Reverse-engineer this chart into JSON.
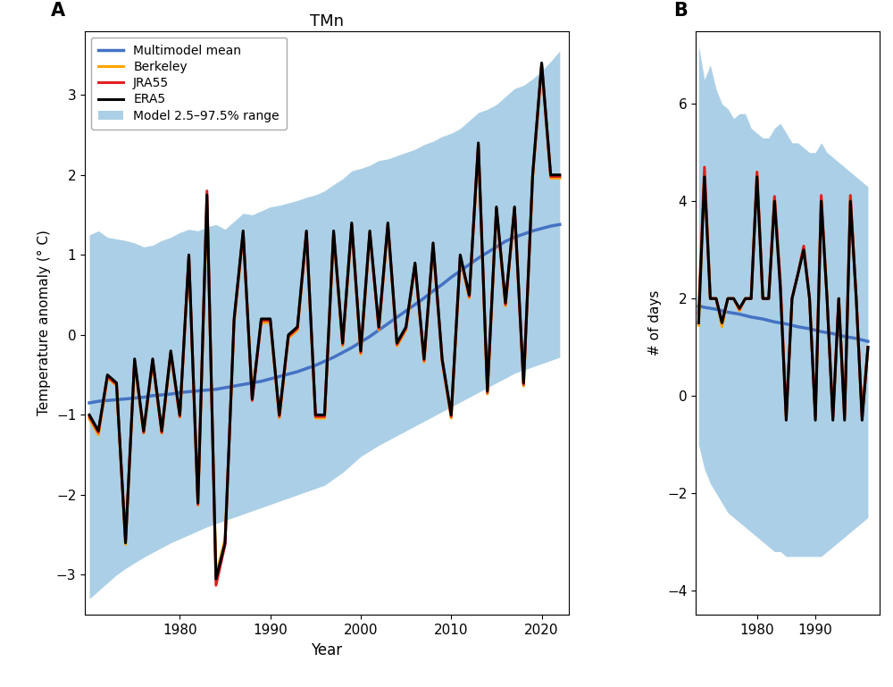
{
  "title_A": "TMn",
  "label_A": "A",
  "label_B": "B",
  "ylabel_A": "Temperature anomaly (° C)",
  "ylabel_B": "# of days",
  "xlabel": "Year",
  "legend_labels": [
    "Multimodel mean",
    "Berkeley",
    "JRA55",
    "ERA5",
    "Model 2.5–97.5% range"
  ],
  "shade_color": "#7EB6D9",
  "shade_alpha": 0.65,
  "blue_color": "#4472C4",
  "orange_color": "#FFA500",
  "red_color": "#E02020",
  "black_color": "#000000",
  "years_A": [
    1970,
    1971,
    1972,
    1973,
    1974,
    1975,
    1976,
    1977,
    1978,
    1979,
    1980,
    1981,
    1982,
    1983,
    1984,
    1985,
    1986,
    1987,
    1988,
    1989,
    1990,
    1991,
    1992,
    1993,
    1994,
    1995,
    1996,
    1997,
    1998,
    1999,
    2000,
    2001,
    2002,
    2003,
    2004,
    2005,
    2006,
    2007,
    2008,
    2009,
    2010,
    2011,
    2012,
    2013,
    2014,
    2015,
    2016,
    2017,
    2018,
    2019,
    2020,
    2021,
    2022
  ],
  "multimodel_A": [
    -0.85,
    -0.83,
    -0.82,
    -0.81,
    -0.8,
    -0.79,
    -0.78,
    -0.76,
    -0.75,
    -0.74,
    -0.72,
    -0.71,
    -0.7,
    -0.69,
    -0.68,
    -0.66,
    -0.64,
    -0.62,
    -0.6,
    -0.58,
    -0.55,
    -0.52,
    -0.49,
    -0.46,
    -0.42,
    -0.38,
    -0.33,
    -0.28,
    -0.22,
    -0.16,
    -0.09,
    -0.02,
    0.06,
    0.14,
    0.22,
    0.3,
    0.38,
    0.46,
    0.55,
    0.63,
    0.72,
    0.8,
    0.88,
    0.96,
    1.03,
    1.1,
    1.17,
    1.22,
    1.26,
    1.3,
    1.33,
    1.36,
    1.38
  ],
  "shade_upper_A": [
    1.25,
    1.3,
    1.22,
    1.2,
    1.18,
    1.15,
    1.1,
    1.12,
    1.18,
    1.22,
    1.28,
    1.32,
    1.3,
    1.35,
    1.38,
    1.32,
    1.42,
    1.52,
    1.5,
    1.55,
    1.6,
    1.62,
    1.65,
    1.68,
    1.72,
    1.75,
    1.8,
    1.88,
    1.95,
    2.05,
    2.08,
    2.12,
    2.18,
    2.2,
    2.24,
    2.28,
    2.32,
    2.38,
    2.42,
    2.48,
    2.52,
    2.58,
    2.68,
    2.78,
    2.82,
    2.88,
    2.98,
    3.08,
    3.12,
    3.2,
    3.3,
    3.42,
    3.55
  ],
  "shade_lower_A": [
    -3.3,
    -3.2,
    -3.1,
    -3.0,
    -2.92,
    -2.85,
    -2.78,
    -2.72,
    -2.66,
    -2.6,
    -2.55,
    -2.5,
    -2.45,
    -2.4,
    -2.36,
    -2.32,
    -2.28,
    -2.24,
    -2.2,
    -2.16,
    -2.12,
    -2.08,
    -2.04,
    -2.0,
    -1.96,
    -1.92,
    -1.88,
    -1.8,
    -1.72,
    -1.62,
    -1.52,
    -1.45,
    -1.38,
    -1.32,
    -1.26,
    -1.2,
    -1.14,
    -1.08,
    -1.02,
    -0.96,
    -0.9,
    -0.84,
    -0.78,
    -0.72,
    -0.66,
    -0.6,
    -0.54,
    -0.48,
    -0.44,
    -0.4,
    -0.36,
    -0.32,
    -0.28
  ],
  "era5_A": [
    -1.0,
    -1.2,
    -0.5,
    -0.6,
    -2.6,
    -0.3,
    -1.2,
    -0.3,
    -1.2,
    -0.2,
    -1.0,
    1.0,
    -2.1,
    1.75,
    -3.05,
    -2.6,
    0.2,
    1.3,
    -0.8,
    0.2,
    0.2,
    -1.0,
    0.0,
    0.1,
    1.3,
    -1.0,
    -1.0,
    1.3,
    -0.1,
    1.4,
    -0.2,
    1.3,
    0.1,
    1.4,
    -0.1,
    0.1,
    0.9,
    -0.3,
    1.15,
    -0.3,
    -1.0,
    1.0,
    0.5,
    2.4,
    -0.7,
    1.6,
    0.4,
    1.6,
    -0.6,
    2.0,
    3.4,
    2.0,
    2.0
  ],
  "berkeley_A": [
    -1.0,
    -1.2,
    -0.5,
    -0.6,
    -2.6,
    -0.3,
    -1.2,
    -0.3,
    -1.2,
    -0.2,
    -1.0,
    1.0,
    -2.1,
    1.75,
    -3.05,
    -2.6,
    0.2,
    1.3,
    -0.8,
    0.2,
    0.2,
    -1.0,
    0.0,
    0.1,
    1.3,
    -1.0,
    -1.0,
    1.3,
    -0.1,
    1.4,
    -0.2,
    1.3,
    0.1,
    1.4,
    -0.1,
    0.1,
    0.9,
    -0.3,
    1.15,
    -0.3,
    -1.0,
    1.0,
    0.5,
    2.4,
    -0.7,
    1.6,
    0.4,
    1.6,
    -0.6,
    2.0,
    3.4,
    2.0,
    2.0
  ],
  "jra55_A": [
    -1.0,
    -1.2,
    -0.5,
    -0.6,
    -2.6,
    -0.3,
    -1.2,
    -0.3,
    -1.2,
    -0.2,
    -1.0,
    1.0,
    -2.1,
    1.75,
    -3.05,
    -2.6,
    0.2,
    1.3,
    -0.8,
    0.2,
    0.2,
    -1.0,
    0.0,
    0.1,
    1.3,
    -1.0,
    -1.0,
    1.3,
    -0.1,
    1.4,
    -0.2,
    1.3,
    0.1,
    1.4,
    -0.1,
    0.1,
    0.9,
    -0.3,
    1.15,
    -0.3,
    -1.0,
    1.0,
    0.5,
    2.4,
    -0.7,
    1.6,
    0.4,
    1.6,
    -0.6,
    2.0,
    3.4,
    2.0,
    2.0
  ],
  "era5_A_offset": [
    0.0,
    0.0,
    0.0,
    0.0,
    0.0,
    0.0,
    0.0,
    0.0,
    0.0,
    0.0,
    0.0,
    0.0,
    0.0,
    0.0,
    0.0,
    0.0,
    0.0,
    0.0,
    0.0,
    0.0,
    0.0,
    0.0,
    0.0,
    0.0,
    0.0,
    0.0,
    0.0,
    0.0,
    0.0,
    0.0,
    0.0,
    0.0,
    0.0,
    0.0,
    0.0,
    0.0,
    0.0,
    0.0,
    0.0,
    0.0,
    0.0,
    0.0,
    0.0,
    0.0,
    0.0,
    0.0,
    0.0,
    0.0,
    0.0,
    0.0,
    0.0,
    0.0,
    0.0
  ],
  "berkeley_A_offset": [
    -0.05,
    -0.05,
    -0.04,
    -0.03,
    -0.02,
    -0.04,
    -0.03,
    -0.04,
    -0.03,
    -0.04,
    -0.03,
    -0.04,
    -0.03,
    -0.1,
    0.05,
    0.05,
    -0.05,
    -0.05,
    0.05,
    -0.05,
    -0.04,
    -0.04,
    -0.04,
    -0.04,
    -0.04,
    -0.04,
    -0.04,
    -0.04,
    -0.04,
    -0.04,
    -0.04,
    -0.04,
    -0.04,
    -0.04,
    -0.04,
    -0.04,
    -0.04,
    -0.04,
    -0.04,
    -0.04,
    -0.04,
    -0.04,
    -0.04,
    -0.04,
    -0.04,
    -0.04,
    -0.04,
    -0.04,
    -0.04,
    -0.04,
    -0.04,
    -0.04,
    -0.04
  ],
  "jra55_A_offset": [
    -0.02,
    -0.02,
    -0.02,
    -0.02,
    0.03,
    -0.02,
    -0.02,
    -0.02,
    -0.02,
    -0.02,
    -0.02,
    -0.02,
    -0.02,
    0.05,
    -0.08,
    -0.02,
    -0.02,
    -0.02,
    -0.02,
    -0.02,
    -0.02,
    -0.02,
    -0.02,
    -0.02,
    -0.02,
    -0.02,
    -0.02,
    -0.02,
    -0.02,
    -0.02,
    -0.02,
    -0.02,
    -0.02,
    -0.02,
    -0.02,
    -0.02,
    -0.02,
    -0.02,
    -0.02,
    -0.02,
    -0.02,
    -0.02,
    -0.02,
    -0.02,
    -0.02,
    -0.02,
    -0.02,
    -0.02,
    -0.02,
    -0.02,
    -0.02,
    -0.02,
    -0.02
  ],
  "years_B": [
    1970,
    1971,
    1972,
    1973,
    1974,
    1975,
    1976,
    1977,
    1978,
    1979,
    1980,
    1981,
    1982,
    1983,
    1984,
    1985,
    1986,
    1987,
    1988,
    1989,
    1990,
    1991,
    1992,
    1993,
    1994,
    1995,
    1996,
    1997,
    1998,
    1999
  ],
  "multimodel_B": [
    1.85,
    1.82,
    1.8,
    1.78,
    1.75,
    1.72,
    1.7,
    1.68,
    1.65,
    1.62,
    1.6,
    1.58,
    1.55,
    1.52,
    1.5,
    1.48,
    1.45,
    1.42,
    1.4,
    1.38,
    1.35,
    1.32,
    1.3,
    1.28,
    1.25,
    1.22,
    1.2,
    1.18,
    1.15,
    1.12
  ],
  "shade_upper_B": [
    7.2,
    6.5,
    6.8,
    6.3,
    6.0,
    5.9,
    5.7,
    5.8,
    5.8,
    5.5,
    5.4,
    5.3,
    5.3,
    5.5,
    5.6,
    5.4,
    5.2,
    5.2,
    5.1,
    5.0,
    5.0,
    5.2,
    5.0,
    4.9,
    4.8,
    4.7,
    4.6,
    4.5,
    4.4,
    4.3
  ],
  "shade_lower_B": [
    -1.0,
    -1.5,
    -1.8,
    -2.0,
    -2.2,
    -2.4,
    -2.5,
    -2.6,
    -2.7,
    -2.8,
    -2.9,
    -3.0,
    -3.1,
    -3.2,
    -3.2,
    -3.3,
    -3.3,
    -3.3,
    -3.3,
    -3.3,
    -3.3,
    -3.3,
    -3.2,
    -3.1,
    -3.0,
    -2.9,
    -2.8,
    -2.7,
    -2.6,
    -2.5
  ],
  "era5_B": [
    1.5,
    4.5,
    2.0,
    2.0,
    1.5,
    2.0,
    2.0,
    1.8,
    2.0,
    2.0,
    4.5,
    2.0,
    2.0,
    4.0,
    2.2,
    -0.5,
    2.0,
    2.5,
    3.0,
    2.0,
    -0.5,
    4.0,
    2.0,
    -0.5,
    2.0,
    -0.5,
    4.0,
    2.0,
    -0.5,
    1.0
  ],
  "berkeley_B": [
    1.5,
    4.5,
    2.0,
    2.0,
    1.5,
    2.0,
    2.0,
    1.8,
    2.0,
    2.0,
    4.5,
    2.0,
    2.0,
    4.0,
    2.2,
    -0.5,
    2.0,
    2.5,
    3.0,
    2.0,
    -0.5,
    4.0,
    2.0,
    -0.5,
    2.0,
    -0.5,
    4.0,
    2.0,
    -0.5,
    1.0
  ],
  "jra55_B": [
    1.5,
    4.5,
    2.0,
    2.0,
    1.5,
    2.0,
    2.0,
    1.8,
    2.0,
    2.0,
    4.5,
    2.0,
    2.0,
    4.0,
    2.2,
    -0.5,
    2.0,
    2.5,
    3.0,
    2.0,
    -0.5,
    4.0,
    2.0,
    -0.5,
    2.0,
    -0.5,
    4.0,
    2.0,
    -0.5,
    1.0
  ],
  "berkeley_B_offset": [
    -0.05,
    0.1,
    0.0,
    0.0,
    -0.08,
    0.0,
    0.0,
    -0.05,
    0.0,
    0.0,
    0.1,
    0.0,
    0.0,
    0.08,
    0.1,
    0.05,
    0.0,
    0.0,
    0.05,
    0.0,
    0.05,
    0.08,
    0.0,
    0.05,
    0.0,
    0.05,
    0.1,
    0.0,
    0.05,
    0.0
  ],
  "jra55_B_offset": [
    0.2,
    0.2,
    0.0,
    0.0,
    0.02,
    0.0,
    0.0,
    -0.02,
    0.0,
    0.0,
    0.1,
    0.0,
    0.0,
    0.1,
    0.15,
    0.1,
    0.0,
    0.0,
    0.08,
    0.0,
    0.08,
    0.12,
    0.0,
    0.08,
    0.0,
    0.08,
    0.12,
    0.0,
    0.08,
    0.0
  ],
  "ylim_A": [
    -3.5,
    3.8
  ],
  "ylim_B": [
    -4.5,
    7.5
  ],
  "yticks_A": [
    -3,
    -2,
    -1,
    0,
    1,
    2,
    3
  ],
  "yticks_B": [
    -4,
    -2,
    0,
    2,
    4,
    6
  ],
  "xlim_A": [
    1969.5,
    2023.0
  ],
  "xlim_B": [
    1969.5,
    2001.0
  ],
  "xticks_A": [
    1980,
    1990,
    2000,
    2010,
    2020
  ],
  "xticks_B": [
    1980,
    1990
  ]
}
